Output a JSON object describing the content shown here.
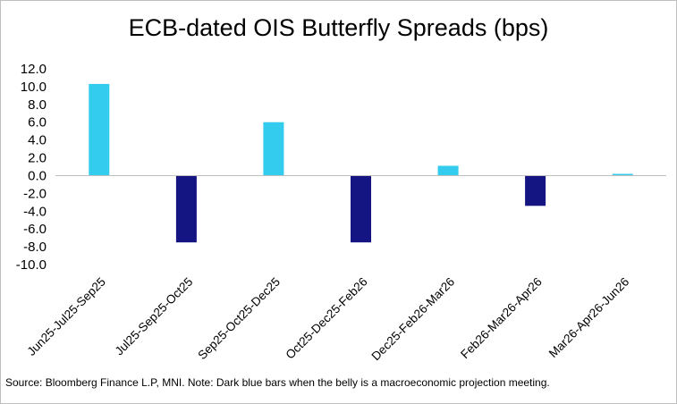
{
  "chart_data": {
    "type": "bar",
    "title": "ECB-dated OIS Butterfly Spreads (bps)",
    "categories": [
      "Jun25-Jul25-Sep25",
      "Jul25-Sep25-Oct25",
      "Sep25-Oct25-Dec25",
      "Oct25-Dec25-Feb26",
      "Dec25-Feb26-Mar26",
      "Feb26-Mar26-Apr26",
      "Mar26-Apr26-Jun26"
    ],
    "values": [
      10.3,
      -7.5,
      6.0,
      -7.5,
      1.1,
      -3.4,
      0.2
    ],
    "bar_colors": [
      "#33ccee",
      "#141482",
      "#33ccee",
      "#141482",
      "#33ccee",
      "#141482",
      "#33ccee"
    ],
    "y_ticks": [
      "12.0",
      "10.0",
      "8.0",
      "6.0",
      "4.0",
      "2.0",
      "0.0",
      "-2.0",
      "-4.0",
      "-6.0",
      "-8.0",
      "-10.0"
    ],
    "y_tick_values": [
      12,
      10,
      8,
      6,
      4,
      2,
      0,
      -2,
      -4,
      -6,
      -8,
      -10
    ],
    "ylim": [
      -10,
      12
    ],
    "xlabel": "",
    "ylabel": "",
    "grid": false,
    "legend": "none"
  },
  "colors": {
    "light_bar": "#33ccee",
    "dark_bar": "#141482",
    "axis": "#bfbfbf"
  },
  "footer": {
    "source": "Source: Bloomberg Finance L.P, MNI. Note: Dark blue bars when the belly is a macroeconomic projection meeting."
  }
}
